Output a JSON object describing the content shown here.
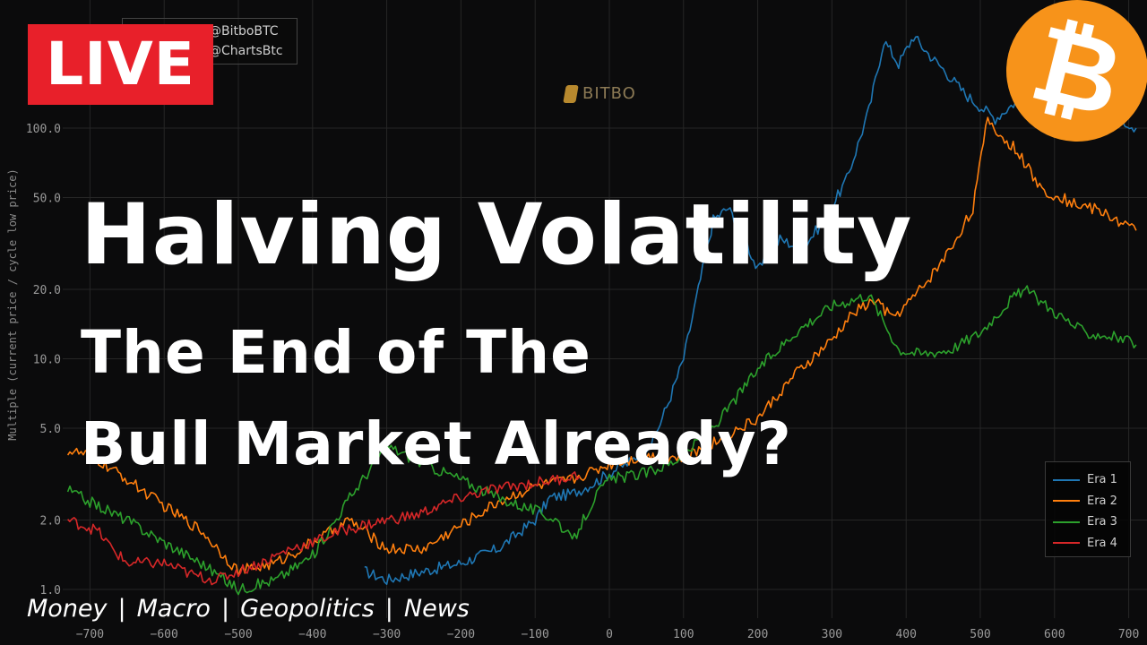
{
  "chart_data": {
    "type": "line",
    "xlabel": "",
    "ylabel": "Multiple (current price / cycle low price)",
    "y_scale": "log",
    "xlim": [
      -730,
      710
    ],
    "ylim": [
      1.0,
      300
    ],
    "x_ticks": [
      -700,
      -600,
      -500,
      -400,
      -300,
      -200,
      -100,
      0,
      100,
      200,
      300,
      400,
      500,
      600,
      700
    ],
    "y_ticks": [
      1.0,
      2.0,
      5.0,
      10.0,
      20.0,
      50.0,
      100.0
    ],
    "y_tick_labels": [
      "1.0",
      "2.0",
      "5.0",
      "10.0",
      "20.0",
      "50.0",
      "100.0"
    ],
    "grid": true,
    "legend_position": "bottom-right",
    "series": [
      {
        "name": "Era 1",
        "color": "#1f77b4",
        "x": [
          -330,
          -300,
          -250,
          -200,
          -150,
          -100,
          -80,
          -50,
          -20,
          0,
          30,
          60,
          80,
          100,
          120,
          140,
          160,
          180,
          200,
          230,
          260,
          290,
          320,
          350,
          370,
          390,
          410,
          430,
          450,
          480,
          520,
          560,
          600,
          640,
          680,
          710
        ],
        "y": [
          1.2,
          1.1,
          1.2,
          1.3,
          1.5,
          2.0,
          2.5,
          2.6,
          2.9,
          3.2,
          3.6,
          4.5,
          6.5,
          10,
          20,
          40,
          45,
          35,
          24,
          33,
          30,
          40,
          60,
          120,
          240,
          190,
          250,
          210,
          180,
          140,
          110,
          140,
          170,
          145,
          115,
          100
        ]
      },
      {
        "name": "Era 2",
        "color": "#ff7f0e",
        "x": [
          -730,
          -700,
          -650,
          -600,
          -550,
          -500,
          -450,
          -400,
          -350,
          -300,
          -250,
          -200,
          -150,
          -100,
          -50,
          0,
          50,
          100,
          150,
          200,
          250,
          300,
          330,
          360,
          380,
          400,
          430,
          460,
          490,
          510,
          530,
          550,
          580,
          620,
          660,
          710
        ],
        "y": [
          4.0,
          3.8,
          3.0,
          2.3,
          1.8,
          1.2,
          1.3,
          1.6,
          2.0,
          1.5,
          1.5,
          1.9,
          2.4,
          2.8,
          3.0,
          3.5,
          3.8,
          3.7,
          4.5,
          5.5,
          8.5,
          12,
          16,
          18,
          15,
          17,
          22,
          30,
          45,
          110,
          90,
          80,
          55,
          48,
          44,
          36
        ]
      },
      {
        "name": "Era 3",
        "color": "#2ca02c",
        "x": [
          -730,
          -700,
          -650,
          -600,
          -550,
          -500,
          -450,
          -400,
          -350,
          -300,
          -250,
          -200,
          -150,
          -100,
          -70,
          -50,
          -20,
          0,
          50,
          80,
          100,
          150,
          200,
          250,
          300,
          350,
          390,
          420,
          460,
          500,
          540,
          560,
          600,
          640,
          680,
          710
        ],
        "y": [
          2.7,
          2.4,
          2.0,
          1.6,
          1.3,
          1.0,
          1.1,
          1.4,
          2.5,
          4.2,
          3.5,
          3.0,
          2.5,
          2.2,
          2.0,
          1.6,
          2.5,
          3.0,
          3.2,
          3.5,
          3.8,
          5.5,
          9,
          13,
          17,
          19,
          11,
          10.5,
          11,
          13,
          18,
          20,
          16,
          13,
          12.5,
          11.5
        ]
      },
      {
        "name": "Era 4",
        "color": "#d62728",
        "x": [
          -730,
          -710,
          -690,
          -670,
          -650,
          -600,
          -560,
          -530,
          -500,
          -470,
          -430,
          -400,
          -360,
          -330,
          -300,
          -260,
          -230,
          -200,
          -160,
          -130,
          -100,
          -70,
          -50,
          -40
        ],
        "y": [
          2.0,
          1.9,
          1.8,
          1.5,
          1.3,
          1.3,
          1.15,
          1.1,
          1.2,
          1.3,
          1.5,
          1.6,
          1.8,
          1.9,
          2.0,
          2.1,
          2.3,
          2.5,
          2.7,
          2.8,
          2.9,
          3.0,
          3.1,
          3.1
        ]
      }
    ]
  },
  "overlay": {
    "live_label": "LIVE",
    "handle_1": "@BitboBTC",
    "handle_2": "@ChartsBtc",
    "watermark": "BITBO",
    "btc_symbol": "₿",
    "title_line_1": "Halving Volatility",
    "title_line_2": "The End of The",
    "title_line_3": "Bull Market Already?",
    "tags": [
      "Money",
      "Macro",
      "Geopolitics",
      "News"
    ],
    "tag_separator": "|"
  }
}
